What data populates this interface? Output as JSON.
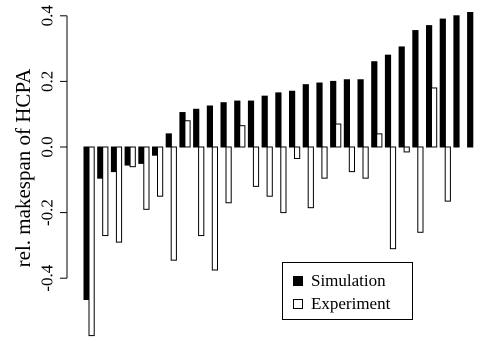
{
  "chart_data": {
    "type": "bar",
    "ylabel": "rel. makespan of HCPA",
    "ylim": [
      -0.58,
      0.4
    ],
    "yticks": [
      -0.4,
      -0.2,
      0.0,
      0.2,
      0.4
    ],
    "ytick_labels": [
      "-0.4",
      "-0.2",
      "0.0",
      "0.2",
      "0.4"
    ],
    "grid": false,
    "legend_position": "bottom-right",
    "series": [
      {
        "name": "Simulation",
        "color": "#000000",
        "values": [
          -0.465,
          -0.095,
          -0.075,
          -0.055,
          -0.05,
          -0.025,
          0.04,
          0.105,
          0.115,
          0.125,
          0.135,
          0.14,
          0.14,
          0.155,
          0.165,
          0.17,
          0.19,
          0.195,
          0.2,
          0.205,
          0.205,
          0.26,
          0.28,
          0.305,
          0.355,
          0.37,
          0.39,
          0.4,
          0.41
        ]
      },
      {
        "name": "Experiment",
        "color": "#ffffff",
        "values": [
          -0.575,
          -0.27,
          -0.29,
          -0.06,
          -0.19,
          -0.15,
          -0.345,
          0.08,
          -0.27,
          -0.375,
          -0.17,
          0.065,
          -0.12,
          -0.15,
          -0.2,
          -0.035,
          -0.185,
          -0.095,
          0.07,
          -0.075,
          -0.095,
          0.04,
          -0.31,
          -0.015,
          -0.26,
          0.18,
          -0.165,
          0,
          0
        ]
      }
    ],
    "legend": [
      "Simulation",
      "Experiment"
    ]
  }
}
